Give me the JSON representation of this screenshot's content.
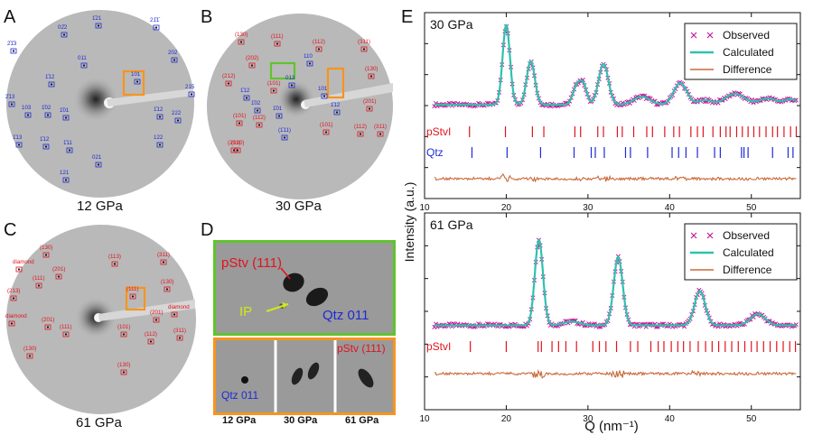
{
  "panels": {
    "A": {
      "letter": "A",
      "caption": "12 GPa"
    },
    "B": {
      "letter": "B",
      "caption": "30 GPa"
    },
    "C": {
      "letter": "C",
      "caption": "61 GPa"
    },
    "D": {
      "letter": "D",
      "top_labels": {
        "pstv": "pStv (111)",
        "ip": "IP",
        "qtz": "Qtz 011"
      },
      "bottom_captions": [
        "12 GPa",
        "30 GPa",
        "61 GPa"
      ],
      "bottom_labels": {
        "qtz": "Qtz 011",
        "pstv": "pStv (111)"
      }
    },
    "E": {
      "letter": "E"
    }
  },
  "spot_labels": {
    "A": [
      "1̄21",
      "02̄2",
      "21̄1̄",
      "2̄1̄3",
      "011",
      "202",
      "1̄12",
      "101",
      "215",
      "2̄13",
      "103",
      "1̄02",
      "1̄01",
      "1̄12",
      "222",
      "1̄13",
      "1̄12",
      "1̄11",
      "122",
      "021",
      "121"
    ],
    "B": [
      "(130)",
      "(111)",
      "(112)",
      "(311)",
      "(202)",
      "110",
      "(101)",
      "013",
      "(130)",
      "(212)",
      "101",
      "(201)",
      "1̄12",
      "(101)",
      "1̄02",
      "1̄01",
      "1̄12",
      "(11̄2)",
      "(201)",
      "(1̄11)",
      "(101)",
      "(112)",
      "(311)",
      "(130)"
    ],
    "C": [
      "(130)",
      "(113)",
      "(311)",
      "diamond",
      "(201)",
      "(111)",
      "(111)",
      "(130)",
      "(213)",
      "(201)",
      "diamond",
      "diamond",
      "(201)",
      "(111)",
      "(101)",
      "(112)",
      "(311)",
      "(130)",
      "(130)"
    ]
  },
  "chart_data": [
    {
      "type": "line",
      "panel_label": "30 GPa",
      "xlim": [
        10,
        56
      ],
      "xticks": [
        10,
        20,
        30,
        40,
        50
      ],
      "legend": [
        "Observed",
        "Calculated",
        "Difference"
      ],
      "legend_position": "top-right",
      "ylabel": "Intensity (a.u.)",
      "tick_rows": [
        {
          "name": "pStvI",
          "color": "#e0141e",
          "positions": [
            15.5,
            19.9,
            23.2,
            24.6,
            28.4,
            29.1,
            31.2,
            31.9,
            33.6,
            34.2,
            35.6,
            37.2,
            37.9,
            39.4,
            40.5,
            41.2,
            42.6,
            43.4,
            44.1,
            45.3,
            46.2,
            46.9,
            47.4,
            48.2,
            48.9,
            49.6,
            50.3,
            51.0,
            51.8,
            52.6,
            53.2,
            54.0,
            54.8,
            55.5
          ]
        },
        {
          "name": "Qtz",
          "color": "#1e2ad6",
          "positions": [
            15.8,
            20.1,
            24.2,
            28.3,
            30.4,
            30.9,
            32.0,
            34.6,
            35.2,
            37.3,
            40.3,
            41.1,
            42.0,
            43.4,
            45.5,
            46.2,
            48.8,
            49.1,
            49.6,
            52.6,
            54.5,
            55.1
          ]
        }
      ],
      "peaks": [
        {
          "pos": 20.0,
          "height": 0.88,
          "width": 0.45
        },
        {
          "pos": 23.0,
          "height": 0.48,
          "width": 0.5
        },
        {
          "pos": 28.7,
          "height": 0.22,
          "width": 0.5
        },
        {
          "pos": 29.5,
          "height": 0.18,
          "width": 0.4
        },
        {
          "pos": 31.9,
          "height": 0.45,
          "width": 0.6
        },
        {
          "pos": 36.6,
          "height": 0.09,
          "width": 1.0
        },
        {
          "pos": 41.3,
          "height": 0.24,
          "width": 0.8
        },
        {
          "pos": 44.3,
          "height": 0.05,
          "width": 0.8
        },
        {
          "pos": 48.0,
          "height": 0.12,
          "width": 1.2
        },
        {
          "pos": 52.0,
          "height": 0.07,
          "width": 1.0
        },
        {
          "pos": 54.8,
          "height": 0.06,
          "width": 0.8
        }
      ],
      "background": 0.06
    },
    {
      "type": "line",
      "panel_label": "61 GPa",
      "xlim": [
        10,
        56
      ],
      "xticks": [
        10,
        20,
        30,
        40,
        50
      ],
      "xlabel": "Q (nm⁻¹)",
      "legend": [
        "Observed",
        "Calculated",
        "Difference"
      ],
      "legend_position": "top-right",
      "tick_rows": [
        {
          "name": "pStvI",
          "color": "#e0141e",
          "positions": [
            15.6,
            20.0,
            23.9,
            24.3,
            25.6,
            26.4,
            27.3,
            28.6,
            30.6,
            31.4,
            32.2,
            33.5,
            35.2,
            36.1,
            37.7,
            38.6,
            39.3,
            40.2,
            41.0,
            41.7,
            42.5,
            43.5,
            44.4,
            45.2,
            46.0,
            46.8,
            47.6,
            48.4,
            49.2,
            50.0,
            50.7,
            51.5,
            52.3,
            53.1,
            53.9,
            54.7,
            55.4
          ]
        }
      ],
      "peaks": [
        {
          "pos": 24.0,
          "height": 0.9,
          "width": 0.5
        },
        {
          "pos": 33.7,
          "height": 0.72,
          "width": 0.55
        },
        {
          "pos": 28.0,
          "height": 0.04,
          "width": 1.0
        },
        {
          "pos": 43.7,
          "height": 0.36,
          "width": 0.65
        },
        {
          "pos": 50.8,
          "height": 0.12,
          "width": 0.9
        }
      ],
      "background": 0.09
    }
  ],
  "colors": {
    "observed": "#c6189c",
    "calculated": "#2fc2ad",
    "difference": "#c96a3a",
    "frame_green": "#5ec42e",
    "frame_orange": "#f7941d",
    "hkl_red": "#e0141e",
    "hkl_blue": "#1e2ad6",
    "ip_yellow": "#d2e61e"
  }
}
